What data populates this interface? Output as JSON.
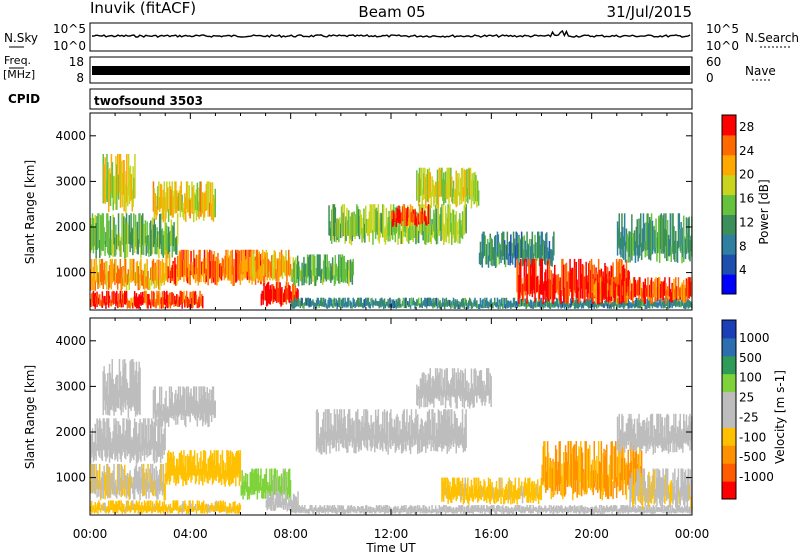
{
  "header": {
    "station": "Inuvik (fitACF)",
    "beam": "Beam 05",
    "date": "31/Jul/2015"
  },
  "panels": {
    "nsky": {
      "label": "N.Sky",
      "ticks_left": [
        "10^5",
        "10^0"
      ],
      "ticks_right": [
        "10^5",
        "10^0"
      ],
      "right_label": "N.Search"
    },
    "freq": {
      "label_top": "Freq.",
      "label_bottom": "[MHz]",
      "ticks_left": [
        "18",
        "8"
      ],
      "ticks_right": [
        "60",
        "0"
      ],
      "right_label": "Nave"
    },
    "cpid": {
      "label": "CPID",
      "value": "twofsound 3503"
    }
  },
  "colors": {
    "power_scale": [
      "#0000ff",
      "#1f4fae",
      "#2f7fa0",
      "#3c8f5a",
      "#66c23c",
      "#c8d41e",
      "#ffa800",
      "#ff6a00",
      "#ff0000"
    ],
    "velocity_scale": [
      "#ff0000",
      "#ff5c00",
      "#ff9100",
      "#ffc000",
      "#bdbdbd",
      "#bdbdbd",
      "#7fd33a",
      "#2f9b58",
      "#2c6fb0",
      "#1a3fb8"
    ],
    "ground_scatter": "#bdbdbd"
  },
  "chart_data": [
    {
      "type": "heatmap",
      "title": "",
      "xlabel": "",
      "ylabel": "Slant Range [km]",
      "x_ticks": [
        "00:00",
        "04:00",
        "08:00",
        "12:00",
        "16:00",
        "20:00",
        "00:00"
      ],
      "y_ticks": [
        "1000",
        "2000",
        "3000",
        "4000"
      ],
      "ylim": [
        180,
        4500
      ],
      "colorbar": {
        "label": "Power [dB]",
        "ticks": [
          "4",
          "8",
          "12",
          "16",
          "20",
          "24",
          "28"
        ],
        "range": [
          0,
          30
        ]
      },
      "regions": [
        {
          "t0": 0.0,
          "t1": 4.5,
          "r0": 200,
          "r1": 600,
          "level": 27
        },
        {
          "t0": 0.0,
          "t1": 3.0,
          "r0": 600,
          "r1": 1300,
          "level": 22
        },
        {
          "t0": 0.0,
          "t1": 3.5,
          "r0": 1300,
          "r1": 2300,
          "level": 14
        },
        {
          "t0": 0.5,
          "t1": 1.8,
          "r0": 2300,
          "r1": 3600,
          "level": 18
        },
        {
          "t0": 2.5,
          "t1": 5.0,
          "r0": 2100,
          "r1": 3000,
          "level": 20
        },
        {
          "t0": 3.0,
          "t1": 7.0,
          "r0": 700,
          "r1": 1500,
          "level": 24
        },
        {
          "t0": 6.8,
          "t1": 8.3,
          "r0": 250,
          "r1": 800,
          "level": 29
        },
        {
          "t0": 6.0,
          "t1": 8.0,
          "r0": 800,
          "r1": 1500,
          "level": 22
        },
        {
          "t0": 8.0,
          "t1": 10.5,
          "r0": 700,
          "r1": 1400,
          "level": 14
        },
        {
          "t0": 9.5,
          "t1": 15.0,
          "r0": 1600,
          "r1": 2500,
          "level": 16
        },
        {
          "t0": 12.0,
          "t1": 13.5,
          "r0": 2000,
          "r1": 2500,
          "level": 26
        },
        {
          "t0": 13.0,
          "t1": 15.5,
          "r0": 2400,
          "r1": 3300,
          "level": 18
        },
        {
          "t0": 8.0,
          "t1": 24.0,
          "r0": 200,
          "r1": 450,
          "level": 10
        },
        {
          "t0": 15.5,
          "t1": 18.5,
          "r0": 1100,
          "r1": 1900,
          "level": 10
        },
        {
          "t0": 17.0,
          "t1": 21.5,
          "r0": 300,
          "r1": 1300,
          "level": 28
        },
        {
          "t0": 20.0,
          "t1": 24.0,
          "r0": 300,
          "r1": 900,
          "level": 26
        },
        {
          "t0": 21.0,
          "t1": 24.0,
          "r0": 1200,
          "r1": 2300,
          "level": 12
        }
      ]
    },
    {
      "type": "heatmap",
      "title": "",
      "xlabel": "Time UT",
      "ylabel": "Slant Range [km]",
      "x_ticks": [
        "00:00",
        "04:00",
        "08:00",
        "12:00",
        "16:00",
        "20:00",
        "00:00"
      ],
      "y_ticks": [
        "1000",
        "2000",
        "3000",
        "4000"
      ],
      "ylim": [
        180,
        4500
      ],
      "colorbar": {
        "label": "Velocity [m s-1]",
        "ticks": [
          "1000",
          "500",
          "100",
          "25",
          "-25",
          "-100",
          "-500",
          "-1000"
        ],
        "range": [
          -1200,
          1200
        ]
      },
      "regions": [
        {
          "t0": 0.0,
          "t1": 6.0,
          "r0": 200,
          "r1": 500,
          "level": -300
        },
        {
          "t0": 0.0,
          "t1": 3.0,
          "r0": 500,
          "r1": 1300,
          "level": -200
        },
        {
          "t0": 0.0,
          "t1": 3.0,
          "r0": 1300,
          "r1": 2300,
          "level": 0
        },
        {
          "t0": 0.5,
          "t1": 2.0,
          "r0": 2300,
          "r1": 3600,
          "level": 0
        },
        {
          "t0": 2.5,
          "t1": 5.0,
          "r0": 2100,
          "r1": 3000,
          "level": 0
        },
        {
          "t0": 3.0,
          "t1": 6.0,
          "r0": 800,
          "r1": 1600,
          "level": -400
        },
        {
          "t0": 6.0,
          "t1": 8.0,
          "r0": 500,
          "r1": 1200,
          "level": 300
        },
        {
          "t0": 7.0,
          "t1": 8.3,
          "r0": 250,
          "r1": 700,
          "level": 0
        },
        {
          "t0": 8.0,
          "t1": 24.0,
          "r0": 200,
          "r1": 400,
          "level": 60
        },
        {
          "t0": 9.0,
          "t1": 15.0,
          "r0": 1500,
          "r1": 2500,
          "level": 0
        },
        {
          "t0": 13.0,
          "t1": 16.0,
          "r0": 2500,
          "r1": 3400,
          "level": 0
        },
        {
          "t0": 14.0,
          "t1": 18.0,
          "r0": 400,
          "r1": 1000,
          "level": -300
        },
        {
          "t0": 18.0,
          "t1": 22.0,
          "r0": 500,
          "r1": 1800,
          "level": -500
        },
        {
          "t0": 21.5,
          "t1": 24.0,
          "r0": 300,
          "r1": 1200,
          "level": -200
        },
        {
          "t0": 21.0,
          "t1": 24.0,
          "r0": 1500,
          "r1": 2400,
          "level": 0
        }
      ]
    }
  ]
}
